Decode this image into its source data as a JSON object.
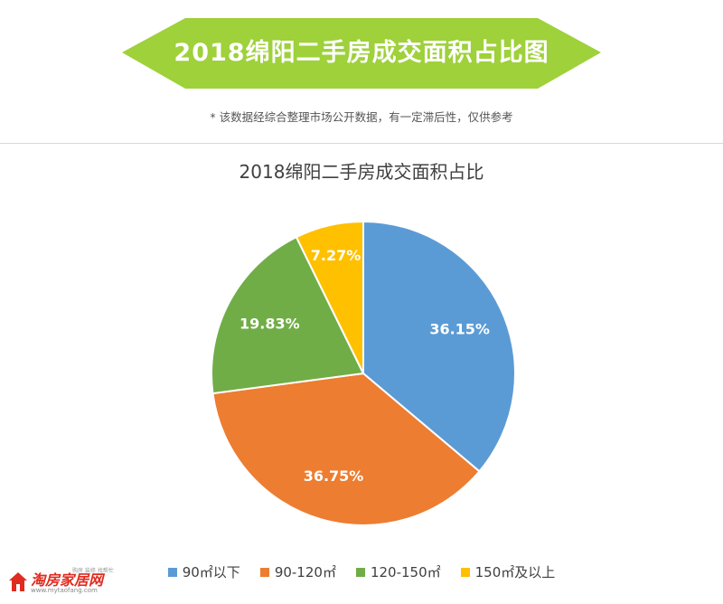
{
  "header": {
    "title": "2018绵阳二手房成交面积占比图",
    "note": "* 该数据经综合整理市场公开数据，有一定滞后性，仅供参考"
  },
  "colors": {
    "banner": "#9ed13a",
    "series": [
      "#5b9bd5",
      "#ed7d31",
      "#70ad47",
      "#ffc000"
    ]
  },
  "chart_data": {
    "type": "pie",
    "title": "2018绵阳二手房成交面积占比",
    "categories": [
      "90㎡以下",
      "90-120㎡",
      "120-150㎡",
      "150㎡及以上"
    ],
    "values": [
      36.15,
      36.75,
      19.83,
      7.27
    ],
    "labels": [
      "36.15%",
      "36.75%",
      "19.83%",
      "7.27%"
    ],
    "start_angle": "12 o'clock, clockwise",
    "legend": "bottom"
  },
  "logo": {
    "main": "淘房家居网",
    "sub": "www.mytaofang.com",
    "tag": "购房 装修 找帮忙"
  }
}
